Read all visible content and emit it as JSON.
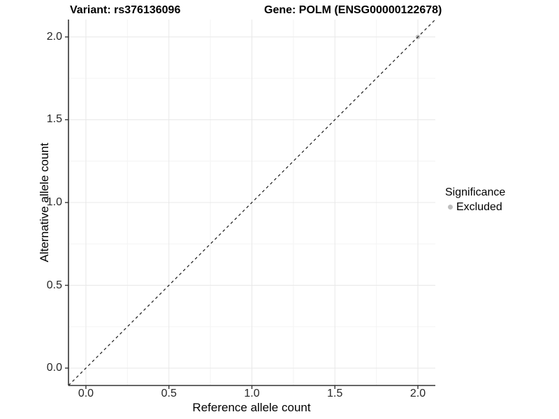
{
  "header": {
    "title_left": "Variant: rs376136096",
    "title_right": "Gene: POLM (ENSG00000122678)"
  },
  "legend": {
    "title": "Significance",
    "items": [
      {
        "label": "Excluded",
        "color": "#bebebe"
      }
    ],
    "position": "right"
  },
  "chart_data": {
    "type": "scatter",
    "title": "Variant: rs376136096   Gene: POLM (ENSG00000122678)",
    "xlabel": "Reference allele count",
    "ylabel": "Alternative allele count",
    "xlim": [
      -0.105,
      2.105
    ],
    "ylim": [
      -0.105,
      2.105
    ],
    "x_ticks": [
      0.0,
      0.5,
      1.0,
      1.5,
      2.0
    ],
    "x_tick_labels": [
      "0.0",
      "0.5",
      "1.0",
      "1.5",
      "2.0"
    ],
    "y_ticks": [
      0.0,
      0.5,
      1.0,
      1.5,
      2.0
    ],
    "y_tick_labels": [
      "0.0",
      "0.5",
      "1.0",
      "1.5",
      "2.0"
    ],
    "minor_ticks": [
      0.25,
      0.75,
      1.25,
      1.75
    ],
    "grid": "major-and-minor",
    "identity_line": {
      "style": "dashed",
      "from": [
        -0.105,
        -0.105
      ],
      "to": [
        2.105,
        2.105
      ],
      "color": "#1a1a1a"
    },
    "series": [
      {
        "name": "Excluded",
        "color": "#bebebe",
        "points": [
          [
            2.0,
            2.0
          ]
        ]
      }
    ],
    "legend_position": "right",
    "colors": {
      "grid_major": "#e8e8e8",
      "grid_minor": "#f4f4f4",
      "axis_line": "#333333",
      "tick_mark": "#333333",
      "tick_text": "#262626",
      "title_text": "#000000",
      "point": "#bebebe",
      "background": "#ffffff"
    }
  }
}
